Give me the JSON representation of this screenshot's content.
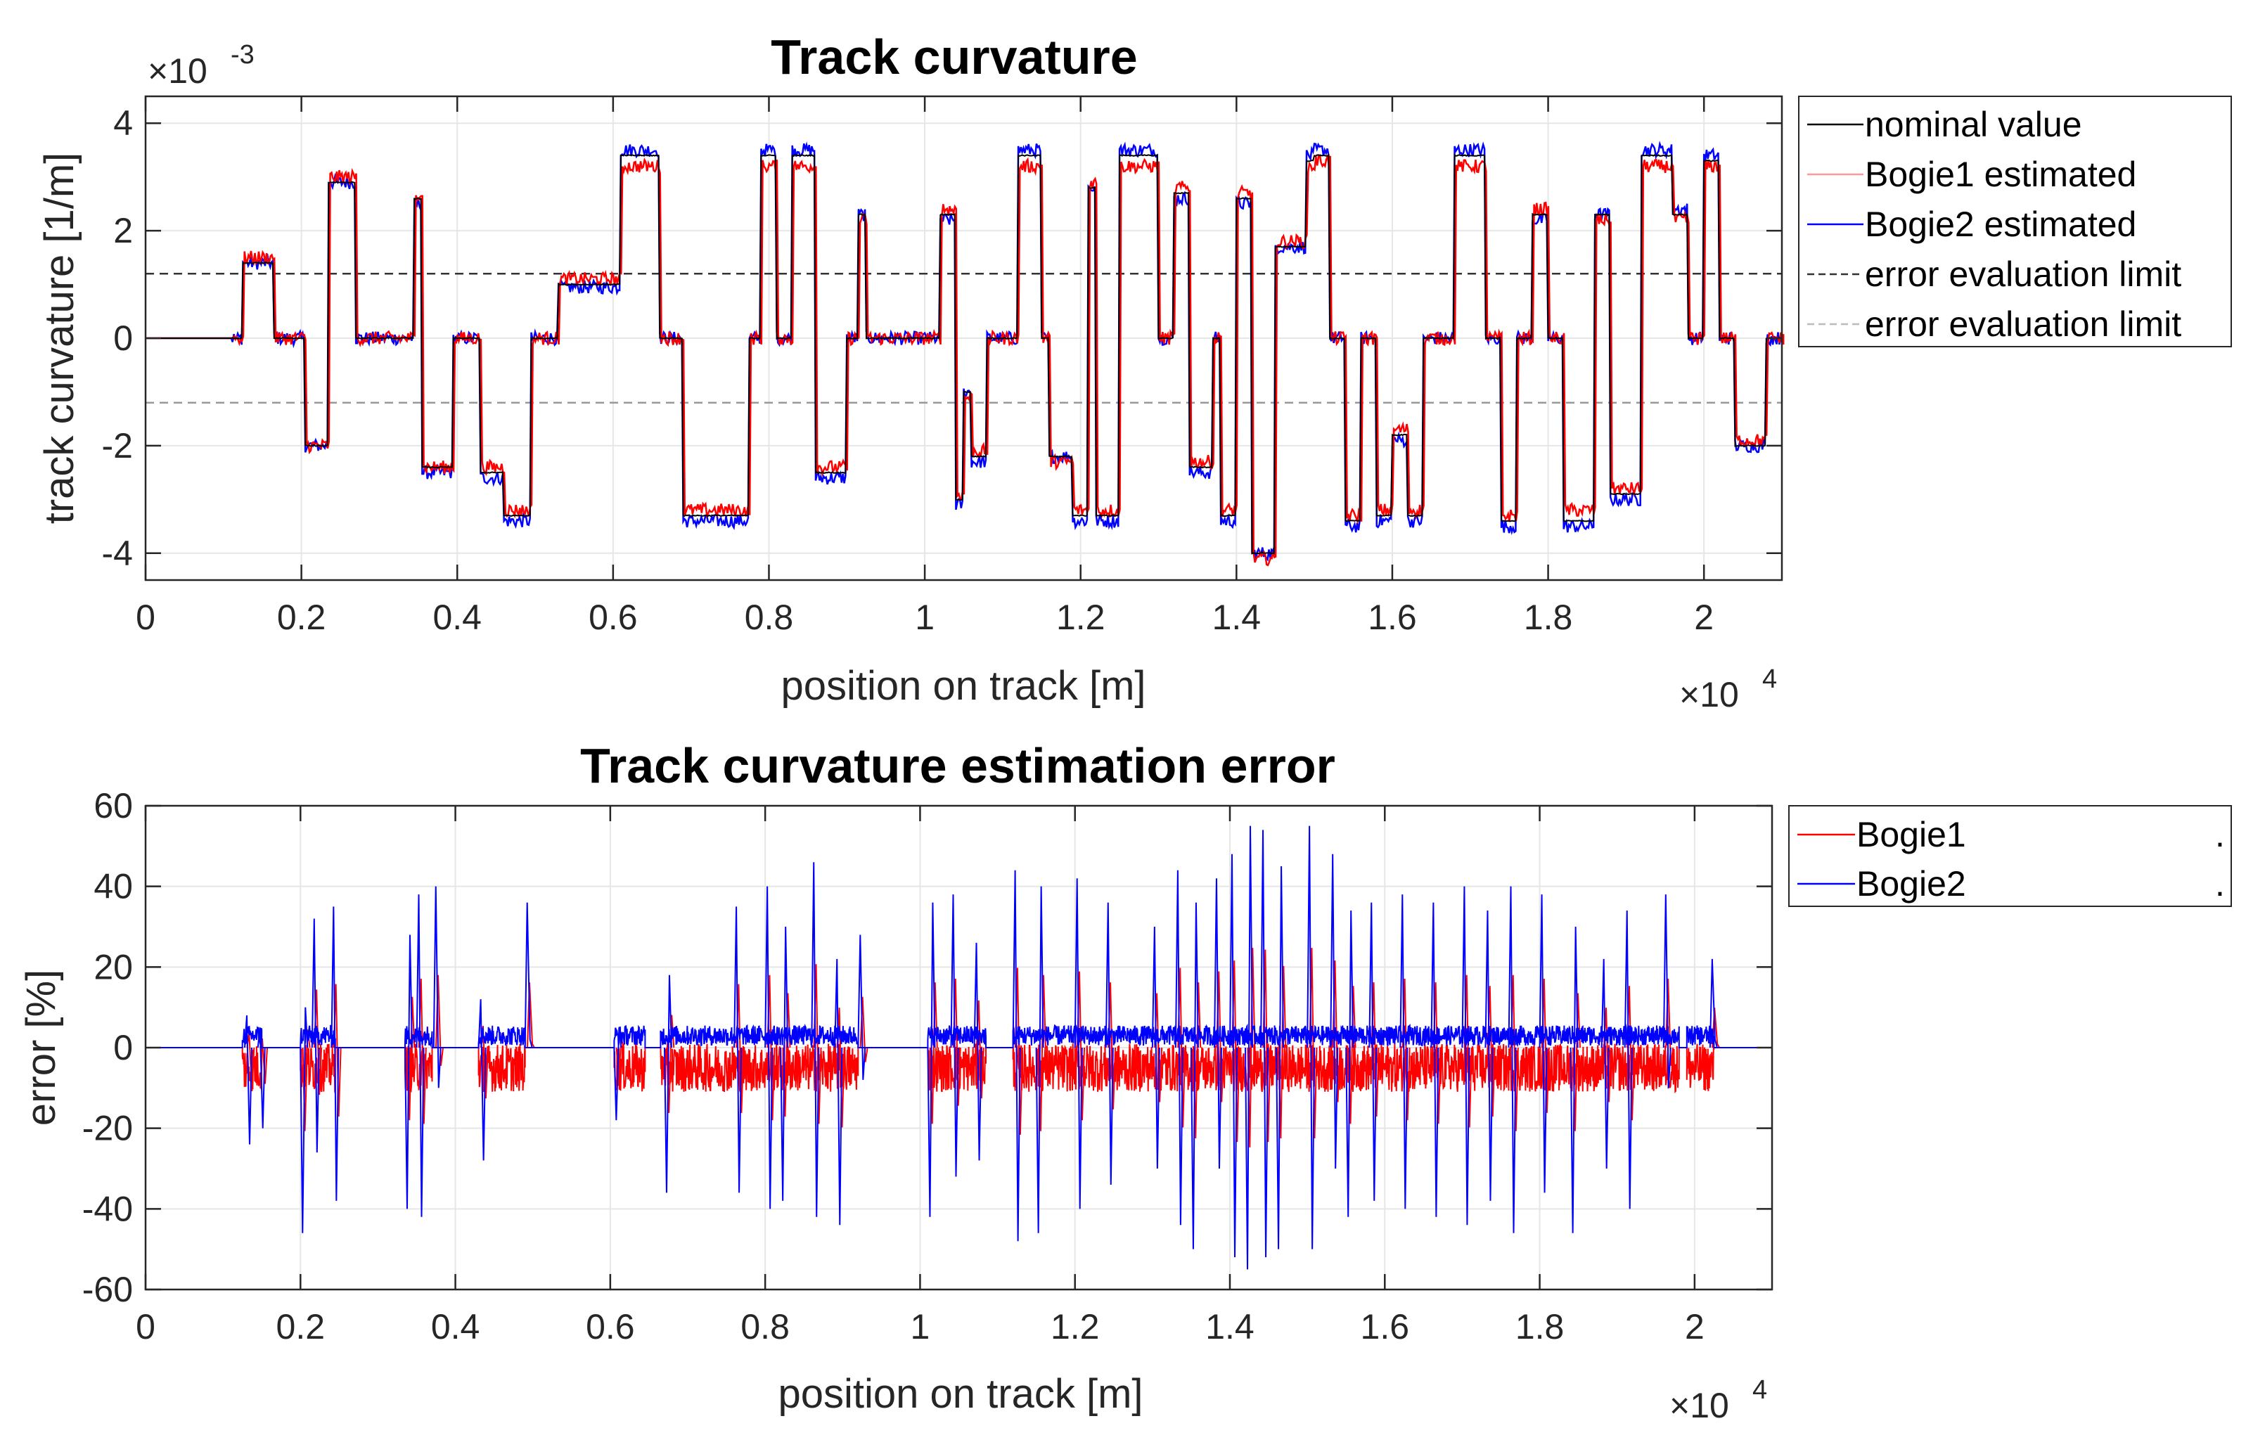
{
  "chart_data": [
    {
      "type": "line",
      "title": "Track curvature",
      "xlabel": "position on track [m]",
      "ylabel": "track curvature [1/m]",
      "x_exponent_label": "×10",
      "x_exponent_power": "4",
      "y_exponent_label": "×10",
      "y_exponent_power": "-3",
      "xlim": [
        0,
        2.1
      ],
      "ylim": [
        -4.5,
        4.5
      ],
      "grid": true,
      "legend_position": "outside-right",
      "xticks": [
        0,
        0.2,
        0.4,
        0.6,
        0.8,
        1,
        1.2,
        1.4,
        1.6,
        1.8,
        2
      ],
      "xtick_labels": [
        "0",
        "0.2",
        "0.4",
        "0.6",
        "0.8",
        "1",
        "1.2",
        "1.4",
        "1.6",
        "1.8",
        "2"
      ],
      "yticks": [
        -4,
        -2,
        0,
        2,
        4
      ],
      "ytick_labels": [
        "-4",
        "-2",
        "0",
        "2",
        "4"
      ],
      "segments_x": [
        0,
        0.11,
        0.125,
        0.15,
        0.165,
        0.19,
        0.205,
        0.22,
        0.235,
        0.25,
        0.27,
        0.33,
        0.345,
        0.355,
        0.38,
        0.395,
        0.42,
        0.43,
        0.45,
        0.46,
        0.47,
        0.495,
        0.505,
        0.53,
        0.54,
        0.57,
        0.6,
        0.61,
        0.63,
        0.65,
        0.66,
        0.68,
        0.69,
        0.76,
        0.775,
        0.79,
        0.8,
        0.81,
        0.83,
        0.85,
        0.86,
        0.89,
        0.9,
        0.915,
        0.925,
        0.94,
        1.0,
        1.01,
        1.02,
        1.04,
        1.05,
        1.06,
        1.07,
        1.08,
        1.1,
        1.12,
        1.13,
        1.15,
        1.16,
        1.18,
        1.19,
        1.2,
        1.21,
        1.22,
        1.24,
        1.25,
        1.28,
        1.3,
        1.32,
        1.34,
        1.35,
        1.37,
        1.38,
        1.4,
        1.42,
        1.44,
        1.45,
        1.47,
        1.49,
        1.5,
        1.52,
        1.54,
        1.56,
        1.58,
        1.6,
        1.62,
        1.64,
        1.66,
        1.68,
        1.7,
        1.72,
        1.74,
        1.76,
        1.78,
        1.8,
        1.82,
        1.84,
        1.86,
        1.88,
        1.9,
        1.92,
        1.94,
        1.96,
        1.98,
        2.0,
        2.02,
        2.04,
        2.06,
        2.08,
        2.1
      ],
      "series": [
        {
          "name": "nominal value",
          "color": "#000000",
          "values": [
            0,
            0,
            1.4,
            1.4,
            0,
            0,
            -2.0,
            -2.0,
            2.9,
            2.9,
            0,
            0,
            2.6,
            -2.4,
            -2.4,
            0,
            0,
            -2.5,
            -2.5,
            -3.3,
            -3.3,
            0,
            0,
            1.0,
            1.0,
            1.0,
            1.0,
            3.4,
            3.4,
            3.4,
            0,
            0,
            -3.3,
            -3.3,
            0,
            3.4,
            3.4,
            0,
            3.4,
            3.4,
            -2.5,
            -2.5,
            0,
            2.3,
            0,
            0,
            0,
            0,
            2.3,
            -3.0,
            -1.0,
            -2.2,
            -2.2,
            0,
            0,
            3.4,
            3.4,
            0,
            -2.2,
            -2.2,
            -3.3,
            -3.3,
            2.8,
            -3.3,
            -3.3,
            3.4,
            3.4,
            0,
            2.7,
            -2.4,
            -2.4,
            0,
            -3.3,
            2.6,
            -4.0,
            -4.0,
            1.7,
            1.7,
            3.3,
            3.4,
            0,
            -3.4,
            0,
            -3.3,
            -1.8,
            -3.3,
            0,
            0,
            3.4,
            3.4,
            0,
            -3.4,
            0,
            2.3,
            0,
            -3.4,
            -3.4,
            2.3,
            -2.9,
            -2.9,
            3.4,
            3.4,
            2.3,
            0,
            3.3,
            0,
            -2.0,
            -2.0,
            0,
            0
          ]
        },
        {
          "name": "Bogie1 estimated",
          "color": "#ff0000",
          "values": [
            0,
            0,
            1.5,
            1.5,
            0,
            0,
            -2.0,
            -2.0,
            3.0,
            3.0,
            0,
            0,
            2.7,
            -2.4,
            -2.4,
            0,
            0,
            -2.4,
            -2.4,
            -3.2,
            -3.2,
            0,
            0,
            1.1,
            1.1,
            1.1,
            1.1,
            3.2,
            3.2,
            3.2,
            0,
            0,
            -3.2,
            -3.2,
            0,
            3.2,
            3.2,
            0,
            3.2,
            3.2,
            -2.4,
            -2.4,
            0,
            2.2,
            0,
            0,
            0,
            0,
            2.4,
            -2.9,
            -1.1,
            -2.1,
            -2.1,
            0,
            0,
            3.2,
            3.2,
            0,
            -2.3,
            -2.3,
            -3.2,
            -3.2,
            2.9,
            -3.2,
            -3.2,
            3.2,
            3.2,
            0,
            2.8,
            -2.3,
            -2.3,
            0,
            -3.2,
            2.7,
            -4.1,
            -4.1,
            1.8,
            1.8,
            3.2,
            3.3,
            0,
            -3.3,
            0,
            -3.2,
            -1.7,
            -3.2,
            0,
            0,
            3.2,
            3.2,
            0,
            -3.3,
            0,
            2.4,
            0,
            -3.2,
            -3.2,
            2.2,
            -2.8,
            -2.8,
            3.2,
            3.2,
            2.2,
            0,
            3.2,
            0,
            -1.9,
            -1.9,
            0,
            0
          ]
        },
        {
          "name": "Bogie2 estimated",
          "color": "#0000ff",
          "values": [
            0,
            0,
            1.4,
            1.4,
            0,
            0,
            -2.0,
            -2.0,
            2.9,
            2.9,
            0,
            0,
            2.5,
            -2.5,
            -2.5,
            0,
            0,
            -2.6,
            -2.6,
            -3.4,
            -3.4,
            0,
            0,
            0.95,
            0.95,
            0.95,
            0.95,
            3.5,
            3.5,
            3.5,
            0,
            0,
            -3.4,
            -3.4,
            0,
            3.5,
            3.5,
            0,
            3.5,
            3.5,
            -2.6,
            -2.6,
            0,
            2.3,
            0,
            0,
            0,
            0,
            2.2,
            -3.1,
            -1.0,
            -2.3,
            -2.3,
            0,
            0,
            3.5,
            3.5,
            0,
            -2.2,
            -2.2,
            -3.4,
            -3.4,
            2.8,
            -3.4,
            -3.4,
            3.5,
            3.5,
            0,
            2.6,
            -2.5,
            -2.5,
            0,
            -3.4,
            2.5,
            -4.0,
            -4.0,
            1.7,
            1.7,
            3.4,
            3.5,
            0,
            -3.5,
            0,
            -3.4,
            -1.9,
            -3.4,
            0,
            0,
            3.5,
            3.5,
            0,
            -3.5,
            0,
            2.2,
            0,
            -3.5,
            -3.5,
            2.3,
            -3.0,
            -3.0,
            3.5,
            3.5,
            2.4,
            0,
            3.4,
            0,
            -2.0,
            -2.0,
            0,
            0
          ]
        },
        {
          "name": "error evaluation limit",
          "color": "#333333",
          "style": "dashed",
          "values_const": 1.2
        },
        {
          "name": "error evaluation limit",
          "color": "#999999",
          "style": "dashed",
          "values_const": -1.2
        }
      ]
    },
    {
      "type": "line",
      "title": "Track curvature estimation error",
      "xlabel": "position on track [m]",
      "ylabel": "error [%]",
      "x_exponent_label": "×10",
      "x_exponent_power": "4",
      "xlim": [
        0,
        2.1
      ],
      "ylim": [
        -60,
        60
      ],
      "grid": true,
      "legend_position": "outside-right",
      "xticks": [
        0,
        0.2,
        0.4,
        0.6,
        0.8,
        1,
        1.2,
        1.4,
        1.6,
        1.8,
        2
      ],
      "xtick_labels": [
        "0",
        "0.2",
        "0.4",
        "0.6",
        "0.8",
        "1",
        "1.2",
        "1.4",
        "1.6",
        "1.8",
        "2"
      ],
      "yticks": [
        -60,
        -40,
        -20,
        0,
        20,
        40,
        60
      ],
      "ytick_labels": [
        "-60",
        "-40",
        "-20",
        "0",
        "20",
        "40",
        "60"
      ],
      "active_ranges": [
        [
          0.125,
          0.15
        ],
        [
          0.2,
          0.245
        ],
        [
          0.335,
          0.37
        ],
        [
          0.43,
          0.49
        ],
        [
          0.605,
          0.645
        ],
        [
          0.665,
          0.92
        ],
        [
          1.01,
          1.085
        ],
        [
          1.12,
          1.98
        ],
        [
          1.99,
          2.025
        ]
      ],
      "spikes_x": [
        0.128,
        0.145,
        0.2,
        0.215,
        0.24,
        0.335,
        0.35,
        0.372,
        0.43,
        0.49,
        0.605,
        0.67,
        0.76,
        0.8,
        0.82,
        0.86,
        0.89,
        0.92,
        1.01,
        1.04,
        1.07,
        1.12,
        1.15,
        1.2,
        1.24,
        1.3,
        1.33,
        1.35,
        1.38,
        1.4,
        1.42,
        1.44,
        1.46,
        1.5,
        1.53,
        1.55,
        1.58,
        1.62,
        1.66,
        1.7,
        1.73,
        1.76,
        1.8,
        1.84,
        1.88,
        1.91,
        1.96,
        2.02
      ],
      "spikes_blue": [
        [
          8,
          -24
        ],
        [
          5,
          -20
        ],
        [
          -46,
          10
        ],
        [
          32,
          -26
        ],
        [
          35,
          -38
        ],
        [
          -40,
          28
        ],
        [
          38,
          -42
        ],
        [
          40,
          -10
        ],
        [
          12,
          -28
        ],
        [
          36,
          2
        ],
        [
          -18,
          5
        ],
        [
          -36,
          18
        ],
        [
          35,
          -36
        ],
        [
          40,
          -40
        ],
        [
          -38,
          30
        ],
        [
          46,
          -42
        ],
        [
          22,
          -44
        ],
        [
          28,
          -8
        ],
        [
          -42,
          36
        ],
        [
          38,
          -32
        ],
        [
          26,
          -28
        ],
        [
          44,
          -48
        ],
        [
          -46,
          40
        ],
        [
          42,
          -40
        ],
        [
          36,
          -34
        ],
        [
          30,
          -30
        ],
        [
          44,
          -44
        ],
        [
          -50,
          36
        ],
        [
          42,
          -30
        ],
        [
          48,
          -52
        ],
        [
          -55,
          55
        ],
        [
          54,
          -52
        ],
        [
          -50,
          45
        ],
        [
          55,
          -50
        ],
        [
          48,
          -30
        ],
        [
          -42,
          34
        ],
        [
          36,
          -38
        ],
        [
          38,
          -40
        ],
        [
          36,
          -42
        ],
        [
          40,
          -44
        ],
        [
          34,
          -38
        ],
        [
          40,
          -46
        ],
        [
          38,
          -36
        ],
        [
          -46,
          30
        ],
        [
          22,
          -30
        ],
        [
          34,
          -40
        ],
        [
          38,
          -10
        ],
        [
          22,
          2
        ]
      ],
      "series": [
        {
          "name": "Bogie1",
          "color": "#ff0000",
          "plateau_level": -5
        },
        {
          "name": "Bogie2",
          "color": "#0000ff",
          "plateau_level": 3
        }
      ],
      "legend_marker": "."
    }
  ]
}
